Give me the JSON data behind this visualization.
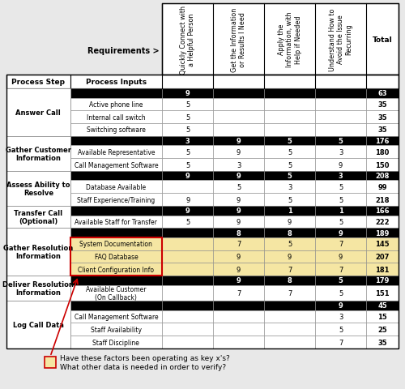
{
  "col_headers": [
    "Quickly Connect with\na Helpful Person",
    "Get the Information\nor Results I Need",
    "Apply the\nInformation, with\nHelp if Needed",
    "Understand How to\nAvoid the Issue\nRecurring",
    "Total"
  ],
  "rows": [
    {
      "step": "Answer Call",
      "input": "",
      "vals": [
        "9",
        "",
        "",
        ""
      ],
      "total": "63",
      "black": true,
      "highlight": false
    },
    {
      "step": "Answer Call",
      "input": "Active phone line",
      "vals": [
        "5",
        "",
        "",
        ""
      ],
      "total": "35",
      "black": false,
      "highlight": false
    },
    {
      "step": "Answer Call",
      "input": "Internal call switch",
      "vals": [
        "5",
        "",
        "",
        ""
      ],
      "total": "35",
      "black": false,
      "highlight": false
    },
    {
      "step": "Answer Call",
      "input": "Switching software",
      "vals": [
        "5",
        "",
        "",
        ""
      ],
      "total": "35",
      "black": false,
      "highlight": false
    },
    {
      "step": "Gather Customer\nInformation",
      "input": "",
      "vals": [
        "3",
        "9",
        "5",
        "5"
      ],
      "total": "176",
      "black": true,
      "highlight": false
    },
    {
      "step": "Gather Customer\nInformation",
      "input": "Available Representative",
      "vals": [
        "5",
        "9",
        "5",
        "3"
      ],
      "total": "180",
      "black": false,
      "highlight": false
    },
    {
      "step": "Gather Customer\nInformation",
      "input": "Call Management Software",
      "vals": [
        "5",
        "3",
        "5",
        "9"
      ],
      "total": "150",
      "black": false,
      "highlight": false
    },
    {
      "step": "Assess Ability to\nResolve",
      "input": "",
      "vals": [
        "9",
        "9",
        "5",
        "3"
      ],
      "total": "208",
      "black": true,
      "highlight": false
    },
    {
      "step": "Assess Ability to\nResolve",
      "input": "Database Available",
      "vals": [
        "",
        "5",
        "3",
        "5"
      ],
      "total": "99",
      "black": false,
      "highlight": false
    },
    {
      "step": "Assess Ability to\nResolve",
      "input": "Staff Experience/Training",
      "vals": [
        "9",
        "9",
        "5",
        "5"
      ],
      "total": "218",
      "black": false,
      "highlight": false
    },
    {
      "step": "Transfer Call\n(Optional)",
      "input": "",
      "vals": [
        "9",
        "9",
        "1",
        "1"
      ],
      "total": "166",
      "black": true,
      "highlight": false
    },
    {
      "step": "Transfer Call\n(Optional)",
      "input": "Available Staff for Transfer",
      "vals": [
        "5",
        "9",
        "9",
        "5"
      ],
      "total": "222",
      "black": false,
      "highlight": false
    },
    {
      "step": "Gather Resolution\nInformation",
      "input": "",
      "vals": [
        "",
        "8",
        "8",
        "9"
      ],
      "total": "189",
      "black": true,
      "highlight": false
    },
    {
      "step": "Gather Resolution\nInformation",
      "input": "System Documentation",
      "vals": [
        "",
        "7",
        "5",
        "7"
      ],
      "total": "145",
      "black": false,
      "highlight": true
    },
    {
      "step": "Gather Resolution\nInformation",
      "input": "FAQ Database",
      "vals": [
        "",
        "9",
        "9",
        "9"
      ],
      "total": "207",
      "black": false,
      "highlight": true
    },
    {
      "step": "Gather Resolution\nInformation",
      "input": "Client Configuration Info",
      "vals": [
        "",
        "9",
        "7",
        "7"
      ],
      "total": "181",
      "black": false,
      "highlight": true
    },
    {
      "step": "Deliver Resolution\nInformation",
      "input": "",
      "vals": [
        "",
        "9",
        "8",
        "5"
      ],
      "total": "179",
      "black": true,
      "highlight": false
    },
    {
      "step": "Deliver Resolution\nInformation",
      "input": "Available Customer\n(On Callback)",
      "vals": [
        "",
        "7",
        "7",
        "5"
      ],
      "total": "151",
      "black": false,
      "highlight": false
    },
    {
      "step": "Log Call Data",
      "input": "",
      "vals": [
        "",
        "",
        "",
        "9"
      ],
      "total": "45",
      "black": true,
      "highlight": false
    },
    {
      "step": "Log Call Data",
      "input": "Call Management Software",
      "vals": [
        "",
        "",
        "",
        "3"
      ],
      "total": "15",
      "black": false,
      "highlight": false
    },
    {
      "step": "Log Call Data",
      "input": "Staff Availability",
      "vals": [
        "",
        "",
        "",
        "5"
      ],
      "total": "25",
      "black": false,
      "highlight": false
    },
    {
      "step": "Log Call Data",
      "input": "Staff Discipline",
      "vals": [
        "",
        "",
        "",
        "7"
      ],
      "total": "35",
      "black": false,
      "highlight": false
    }
  ],
  "highlight_color": "#F5E6A3",
  "highlight_border": "#CC0000",
  "annotation_text": "Have these factors been operating as key x's?\nWhat other data is needed in order to verify?"
}
